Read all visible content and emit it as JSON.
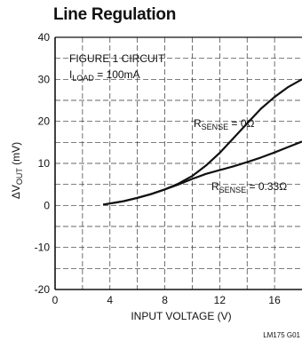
{
  "chart_data": {
    "type": "line",
    "title": "Line Regulation",
    "xlabel": "INPUT VOLTAGE (V)",
    "ylabel": "ΔV",
    "ylabel_sub": "OUT",
    "ylabel_unit": " (mV)",
    "xlim": [
      0,
      18
    ],
    "ylim": [
      -20,
      40
    ],
    "xticks": [
      0,
      4,
      8,
      12,
      16
    ],
    "yticks": [
      -20,
      -10,
      0,
      10,
      20,
      30,
      40
    ],
    "grid": true,
    "annotation_line1": "FIGURE 1 CIRCUIT",
    "annotation_line2_main": "I",
    "annotation_line2_sub": "LOAD",
    "annotation_line2_rest": " = 100mA",
    "series": [
      {
        "name_main": "R",
        "name_sub": "SENSE",
        "name_rest": " = 0Ω",
        "x": [
          3.5,
          5,
          6,
          7,
          8,
          9,
          10,
          11,
          12,
          13,
          14,
          15,
          16,
          17,
          18
        ],
        "y": [
          0.2,
          1,
          1.8,
          2.7,
          3.8,
          5.2,
          7,
          9.5,
          12.5,
          16,
          19.5,
          23,
          25.8,
          28.2,
          30
        ]
      },
      {
        "name_main": "R",
        "name_sub": "SENSE",
        "name_rest": " = 0.33Ω",
        "x": [
          3.5,
          5,
          6,
          7,
          8,
          9,
          10,
          11,
          12,
          13,
          14,
          15,
          16,
          17,
          18
        ],
        "y": [
          0.2,
          1,
          1.8,
          2.7,
          3.8,
          5.0,
          6.3,
          7.5,
          8.4,
          9.3,
          10.3,
          11.4,
          12.6,
          13.9,
          15.2
        ]
      }
    ],
    "footnote": "LM175 G01"
  }
}
